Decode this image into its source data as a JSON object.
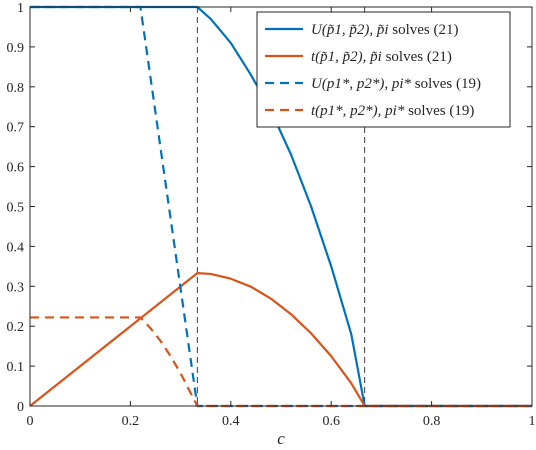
{
  "chart_data": {
    "type": "line",
    "title": "",
    "xlabel": "c",
    "ylabel": "",
    "xlim": [
      0,
      1
    ],
    "ylim": [
      0,
      1
    ],
    "xticks": [
      "0",
      "0.2",
      "0.4",
      "0.6",
      "0.8",
      "1"
    ],
    "yticks": [
      "0",
      "0.1",
      "0.2",
      "0.3",
      "0.4",
      "0.5",
      "0.6",
      "0.7",
      "0.8",
      "0.9",
      "1"
    ],
    "grid": false,
    "legend_position": "top-right",
    "reference_lines_x": [
      0.3333,
      0.6667
    ],
    "series": [
      {
        "name": "U(p̃1, p̃2), p̃i solves (21)",
        "color": "#0072BD",
        "style": "solid",
        "x": [
          0,
          0.3333,
          0.36,
          0.4,
          0.44,
          0.48,
          0.52,
          0.56,
          0.6,
          0.64,
          0.6667,
          0.7,
          0.8,
          0.9,
          1.0
        ],
        "y": [
          1.0,
          1.0,
          0.97,
          0.91,
          0.83,
          0.74,
          0.63,
          0.5,
          0.35,
          0.18,
          0.0,
          0.0,
          0.0,
          0.0,
          0.0
        ]
      },
      {
        "name": "t(p̃1, p̃2), p̃i solves (21)",
        "color": "#D95319",
        "style": "solid",
        "x": [
          0,
          0.3333,
          0.36,
          0.4,
          0.44,
          0.48,
          0.52,
          0.56,
          0.6,
          0.64,
          0.6667,
          0.7,
          0.8,
          0.9,
          1.0
        ],
        "y": [
          0.0,
          0.333,
          0.331,
          0.319,
          0.299,
          0.269,
          0.23,
          0.182,
          0.125,
          0.057,
          0.0,
          0.0,
          0.0,
          0.0,
          0.0
        ]
      },
      {
        "name": "U(p1*, p2*), pi* solves (19)",
        "color": "#0072BD",
        "style": "dashed",
        "x": [
          0,
          0.22,
          0.3333,
          0.4,
          0.6,
          0.8,
          1.0
        ],
        "y": [
          1.0,
          1.0,
          0.0,
          0.0,
          0.0,
          0.0,
          0.0
        ]
      },
      {
        "name": "t(p1*, p2*), pi* solves (19)",
        "color": "#D95319",
        "style": "dashed",
        "x": [
          0,
          0.22,
          0.24,
          0.26,
          0.28,
          0.3,
          0.3333,
          0.4,
          0.6,
          0.8,
          1.0
        ],
        "y": [
          0.222,
          0.222,
          0.195,
          0.163,
          0.125,
          0.082,
          0.0,
          0.0,
          0.0,
          0.0,
          0.0
        ]
      }
    ],
    "legend": {
      "entries": [
        {
          "math": "U(p̃1, p̃2), p̃i",
          "text": " solves (21)"
        },
        {
          "math": "t(p̃1, p̃2), p̃i",
          "text": " solves (21)"
        },
        {
          "math": "U(p1*, p2*), pi*",
          "text": " solves (19)"
        },
        {
          "math": "t(p1*, p2*), pi*",
          "text": " solves (19)"
        }
      ]
    }
  }
}
